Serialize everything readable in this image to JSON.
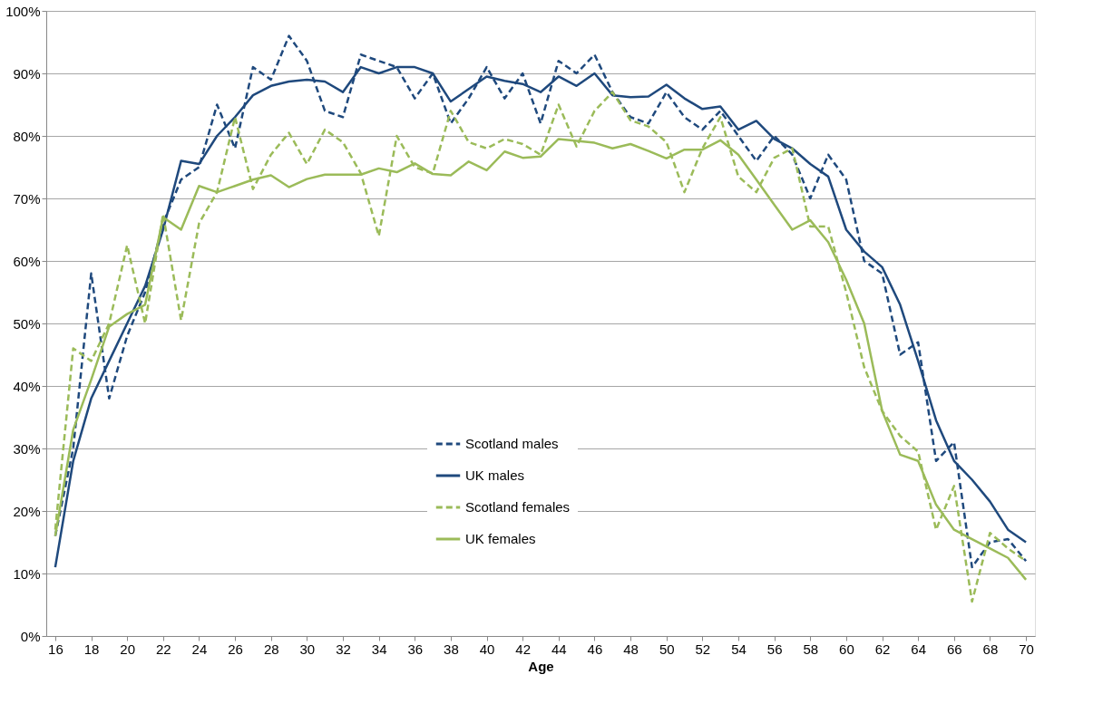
{
  "chart_data": {
    "type": "line",
    "xlabel": "Age",
    "x": [
      16,
      17,
      18,
      19,
      20,
      21,
      22,
      23,
      24,
      25,
      26,
      27,
      28,
      29,
      30,
      31,
      32,
      33,
      34,
      35,
      36,
      37,
      38,
      39,
      40,
      41,
      42,
      43,
      44,
      45,
      46,
      47,
      48,
      49,
      50,
      51,
      52,
      53,
      54,
      55,
      56,
      57,
      58,
      59,
      60,
      61,
      62,
      63,
      64,
      65,
      66,
      67,
      68,
      69,
      70
    ],
    "xlim": [
      15.5,
      70.5
    ],
    "xticks": [
      16,
      18,
      20,
      22,
      24,
      26,
      28,
      30,
      32,
      34,
      36,
      38,
      40,
      42,
      44,
      46,
      48,
      50,
      52,
      54,
      56,
      58,
      60,
      62,
      64,
      66,
      68,
      70
    ],
    "ylim": [
      0,
      100
    ],
    "yticks": [
      {
        "value": 0,
        "label": "0%"
      },
      {
        "value": 10,
        "label": "10%"
      },
      {
        "value": 20,
        "label": "20%"
      },
      {
        "value": 30,
        "label": "30%"
      },
      {
        "value": 40,
        "label": "40%"
      },
      {
        "value": 50,
        "label": "50%"
      },
      {
        "value": 60,
        "label": "60%"
      },
      {
        "value": 70,
        "label": "70%"
      },
      {
        "value": 80,
        "label": "80%"
      },
      {
        "value": 90,
        "label": "90%"
      },
      {
        "value": 100,
        "label": "100%"
      }
    ],
    "grid": "y",
    "legend": "bottom",
    "marker": "none",
    "series": [
      {
        "name": "Scotland males",
        "color": "#1f497d",
        "line_style": "dashed",
        "values": [
          16,
          30,
          58,
          38,
          48,
          55,
          66,
          73,
          75,
          85,
          78,
          91,
          89,
          96,
          92,
          84,
          83,
          93,
          92,
          91,
          86,
          90,
          82,
          86,
          91,
          86,
          90,
          82,
          92,
          90,
          93,
          87,
          83,
          82,
          87,
          83,
          81,
          84,
          80,
          76,
          80,
          77,
          70,
          77,
          73,
          60,
          58,
          45,
          47,
          28,
          31,
          11,
          15,
          15.5,
          12
        ]
      },
      {
        "name": "UK males",
        "color": "#1f497d",
        "line_style": "solid",
        "values": [
          11,
          28,
          38,
          44,
          50,
          56,
          65,
          76,
          75.5,
          80,
          83,
          86.5,
          88,
          88.7,
          89,
          88.7,
          87,
          91,
          90,
          91,
          91,
          90,
          85.5,
          87.5,
          89.5,
          88.8,
          88.3,
          87,
          89.5,
          88,
          90,
          86.5,
          86.2,
          86.3,
          88.2,
          86,
          84.3,
          84.7,
          81,
          82.4,
          79.5,
          78,
          75.5,
          73.5,
          65,
          61.5,
          59,
          53,
          44,
          34.5,
          28,
          25,
          21.5,
          17,
          15
        ]
      },
      {
        "name": "Scotland females",
        "color": "#9bbb59",
        "line_style": "dashed",
        "values": [
          17,
          46,
          44,
          50,
          62.5,
          50,
          67.5,
          50.5,
          66,
          71,
          83,
          71.5,
          77,
          80.5,
          75.5,
          81,
          79,
          74,
          64,
          80,
          75,
          74,
          84,
          79,
          78,
          79.5,
          78.7,
          77,
          85,
          78.3,
          84,
          87,
          82.5,
          81.5,
          79,
          71,
          78,
          83,
          73.5,
          71,
          76.5,
          78,
          65.5,
          65.5,
          55,
          43,
          36,
          32,
          29.5,
          17,
          24,
          5.5,
          16.5,
          14,
          12
        ]
      },
      {
        "name": "UK females",
        "color": "#9bbb59",
        "line_style": "solid",
        "values": [
          16,
          33,
          41,
          49.5,
          51.5,
          53,
          67,
          65,
          72,
          71,
          72,
          73,
          73.7,
          71.8,
          73.1,
          73.8,
          73.8,
          73.8,
          74.8,
          74.2,
          75.6,
          73.9,
          73.7,
          75.9,
          74.5,
          77.5,
          76.5,
          76.7,
          79.5,
          79.2,
          78.9,
          78,
          78.7,
          77.6,
          76.4,
          77.8,
          77.8,
          79.3,
          77,
          73,
          69,
          65,
          66.5,
          63,
          57,
          50,
          36,
          29,
          28,
          21,
          17,
          15.5,
          14,
          12.5,
          9
        ]
      }
    ]
  }
}
